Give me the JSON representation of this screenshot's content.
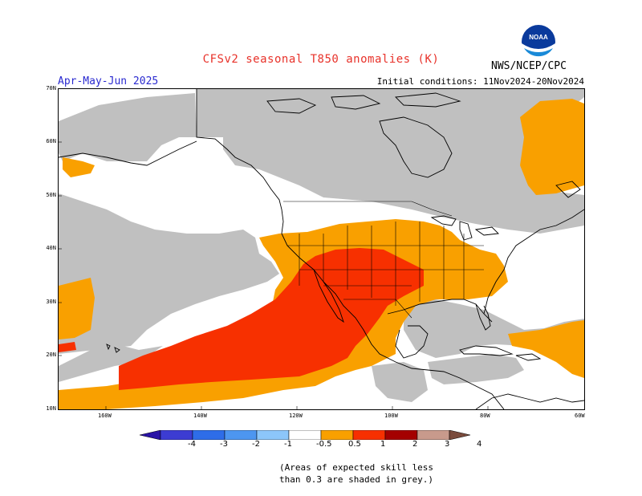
{
  "title": "CFSv2 seasonal T850 anomalies (K)",
  "season": "Apr-May-Jun 2025",
  "initial_conditions": "Initial conditions: 11Nov2024-20Nov2024",
  "agency": "NWS/NCEP/CPC",
  "logo_text": "NOAA",
  "lat_labels": [
    "70N",
    "60N",
    "50N",
    "40N",
    "30N",
    "20N",
    "10N"
  ],
  "lon_labels": [
    "160W",
    "140W",
    "120W",
    "100W",
    "80W",
    "60W"
  ],
  "colorbar": {
    "ticks": [
      "-4",
      "-3",
      "-2",
      "-1",
      "-0.5",
      "0.5",
      "1",
      "2",
      "3",
      "4"
    ],
    "colors": [
      "#2a14a6",
      "#3c3cd2",
      "#2e6de8",
      "#4d96f0",
      "#8cc6fa",
      "#ffffff",
      "#f9a000",
      "#f73000",
      "#a40000",
      "#c89a8c",
      "#7a4b3c"
    ]
  },
  "note_line1": "(Areas of expected skill less",
  "note_line2": "than 0.3 are shaded in grey.)",
  "colors": {
    "skill_grey": "#c0c0c0",
    "warm_05_1": "#f9a000",
    "warm_1_2": "#f73000"
  }
}
